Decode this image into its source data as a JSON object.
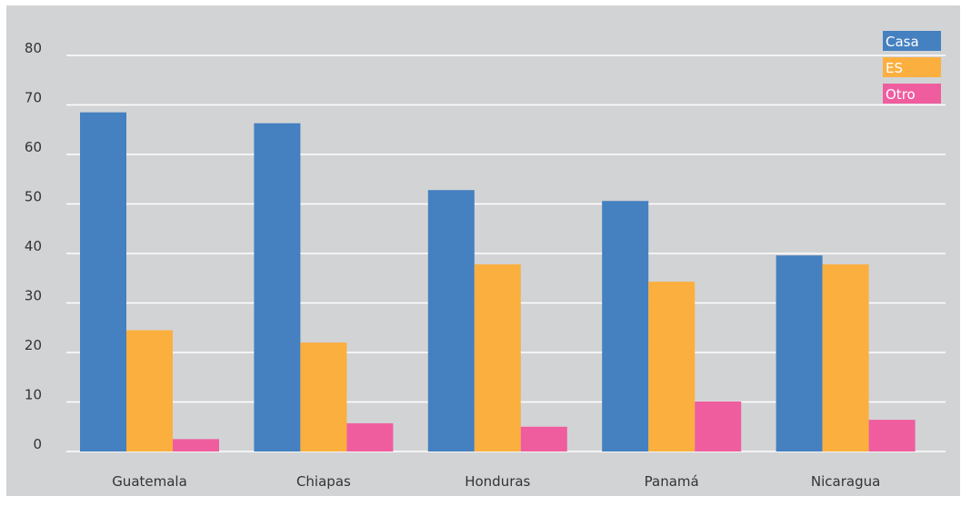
{
  "chart_data": {
    "type": "bar",
    "categories": [
      "Guatemala",
      "Chiapas",
      "Honduras",
      "Panamá",
      "Nicaragua"
    ],
    "series": [
      {
        "name": "Casa",
        "color": "#4580c0",
        "values": [
          68.5,
          66.3,
          52.8,
          50.6,
          39.6
        ]
      },
      {
        "name": "ES",
        "color": "#fbaf3f",
        "values": [
          24.5,
          22.0,
          37.8,
          34.3,
          37.8
        ]
      },
      {
        "name": "Otro",
        "color": "#ef5d9f",
        "values": [
          2.5,
          5.7,
          5.0,
          10.1,
          6.4
        ]
      }
    ],
    "yticks": [
      "0",
      "10",
      "20",
      "30",
      "40",
      "50",
      "60",
      "70",
      "80"
    ],
    "ylim": [
      0,
      80
    ],
    "grid": true,
    "legend_position": "top-right",
    "plot_background": "#d2d3d5",
    "gridline_color": "#ffffff"
  }
}
